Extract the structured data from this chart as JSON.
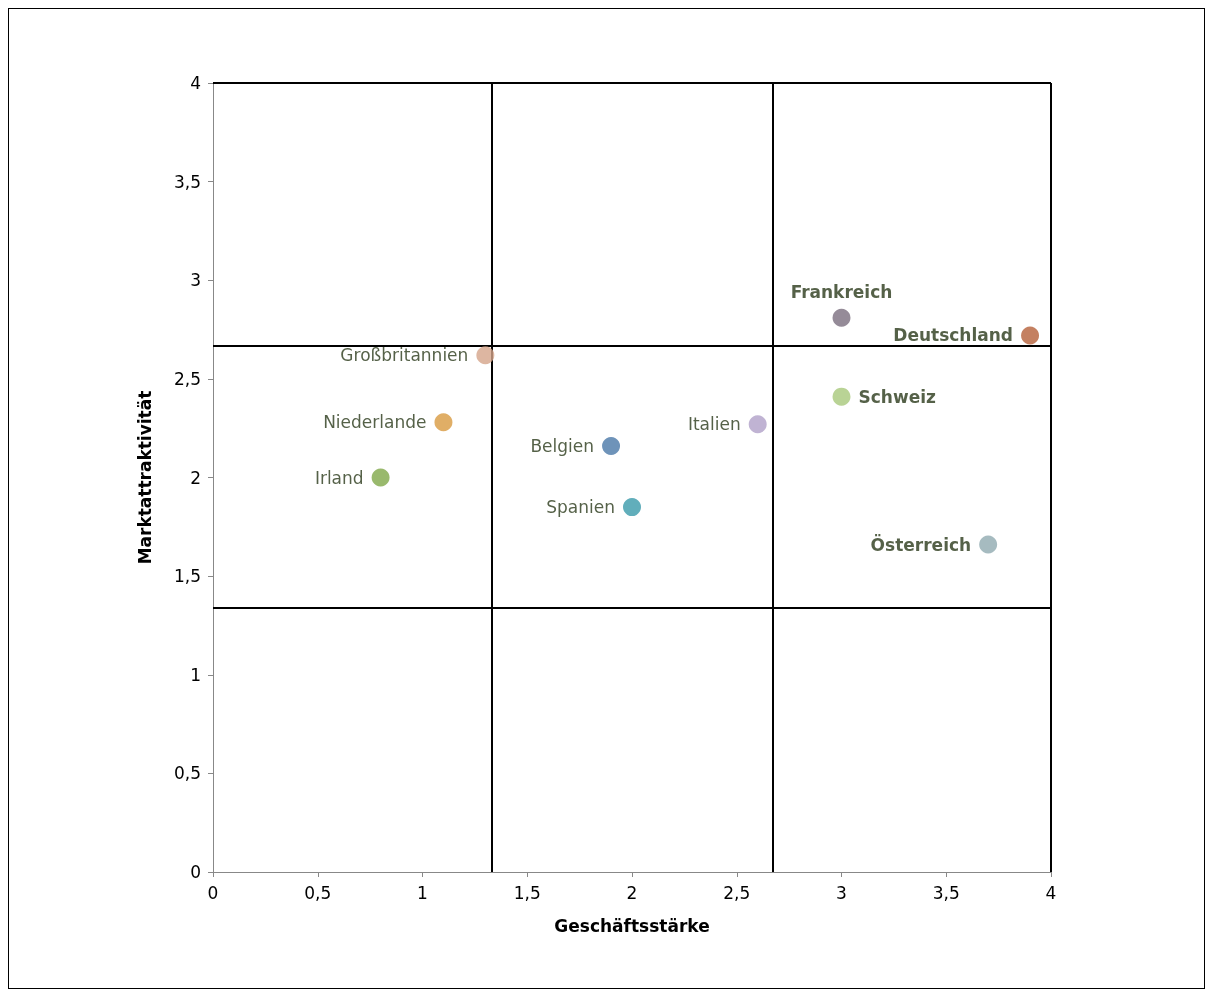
{
  "chart_data": {
    "type": "scatter",
    "xlabel": "Geschäftsstärke",
    "ylabel": "Marktattraktivität",
    "xlim": [
      0,
      4
    ],
    "ylim": [
      0,
      4
    ],
    "xticks": [
      0,
      {
        "value": 0.5,
        "label": "0,5"
      },
      1,
      {
        "value": 1.5,
        "label": "1,5"
      },
      2,
      {
        "value": 2.5,
        "label": "2,5"
      },
      3,
      {
        "value": 3.5,
        "label": "3,5"
      },
      4
    ],
    "yticks": [
      0,
      {
        "value": 0.5,
        "label": "0,5"
      },
      1,
      {
        "value": 1.5,
        "label": "1,5"
      },
      2,
      {
        "value": 2.5,
        "label": "2,5"
      },
      3,
      {
        "value": 3.5,
        "label": "3,5"
      },
      4
    ],
    "grid": false,
    "legend": false,
    "marker": "circle",
    "series": [
      {
        "name": "Frankreich",
        "color": "#7a6e7e",
        "x": [
          3
        ],
        "values": [
          2.81
        ]
      },
      {
        "name": "Deutschland",
        "color": "#b5603a",
        "x": [
          3.9
        ],
        "values": [
          2.72
        ]
      },
      {
        "name": "Großbritannien",
        "color": "#d4a48a",
        "x": [
          1.3
        ],
        "values": [
          2.62
        ]
      },
      {
        "name": "Schweiz",
        "color": "#a8c87a",
        "x": [
          3
        ],
        "values": [
          2.41
        ]
      },
      {
        "name": "Niederlande",
        "color": "#d89a40",
        "x": [
          1.1
        ],
        "values": [
          2.28
        ]
      },
      {
        "name": "Italien",
        "color": "#b0a0c8",
        "x": [
          2.6
        ],
        "values": [
          2.27
        ]
      },
      {
        "name": "Belgien",
        "color": "#4a78a8",
        "x": [
          1.9
        ],
        "values": [
          2.16
        ]
      },
      {
        "name": "Irland",
        "color": "#80a848",
        "x": [
          0.8
        ],
        "values": [
          2.0
        ]
      },
      {
        "name": "Spanien",
        "color": "#3a9aaa",
        "x": [
          2.0
        ],
        "values": [
          1.85
        ]
      },
      {
        "name": "Österreich",
        "color": "#90aab0",
        "x": [
          3.7
        ],
        "values": [
          1.66
        ]
      }
    ],
    "ref_lines": [
      {
        "axis": "x",
        "value": 1.333,
        "color": "#000000"
      },
      {
        "axis": "x",
        "value": 2.667,
        "color": "#000000"
      },
      {
        "axis": "x",
        "value": 4,
        "color": "#000000"
      },
      {
        "axis": "y",
        "value": 1.34,
        "color": "#000000"
      },
      {
        "axis": "y",
        "value": 2.667,
        "color": "#000000"
      },
      {
        "axis": "y",
        "value": 4,
        "color": "#000000"
      }
    ]
  }
}
